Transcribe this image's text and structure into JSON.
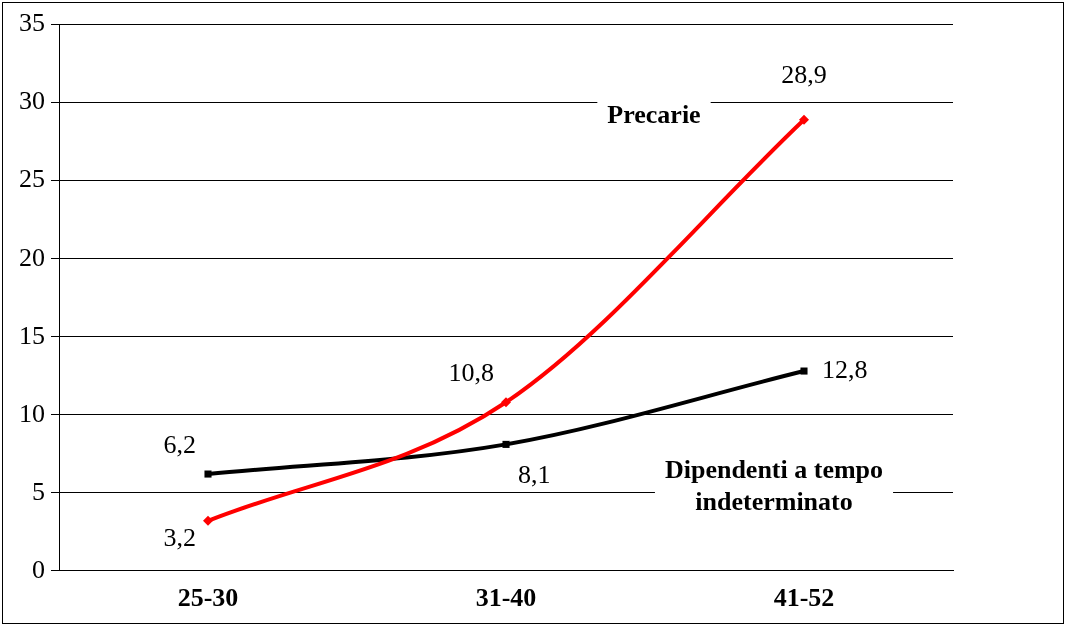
{
  "chart_data": {
    "type": "line",
    "categories": [
      "25-30",
      "31-40",
      "41-52"
    ],
    "series": [
      {
        "name": "Precarie",
        "color": "#ff0000",
        "marker": "diamond",
        "values": [
          3.2,
          10.8,
          28.9
        ],
        "value_labels": [
          "3,2",
          "10,8",
          "28,9"
        ]
      },
      {
        "name": "Dipendenti a tempo indeterminato",
        "color": "#000000",
        "marker": "square",
        "values": [
          6.2,
          8.1,
          12.8
        ],
        "value_labels": [
          "6,2",
          "8,1",
          "12,8"
        ]
      }
    ],
    "ylim": [
      0,
      35
    ],
    "yticks": [
      0,
      5,
      10,
      15,
      20,
      25,
      30,
      35
    ],
    "grid": "y",
    "legend": false,
    "line_style": "solid"
  }
}
